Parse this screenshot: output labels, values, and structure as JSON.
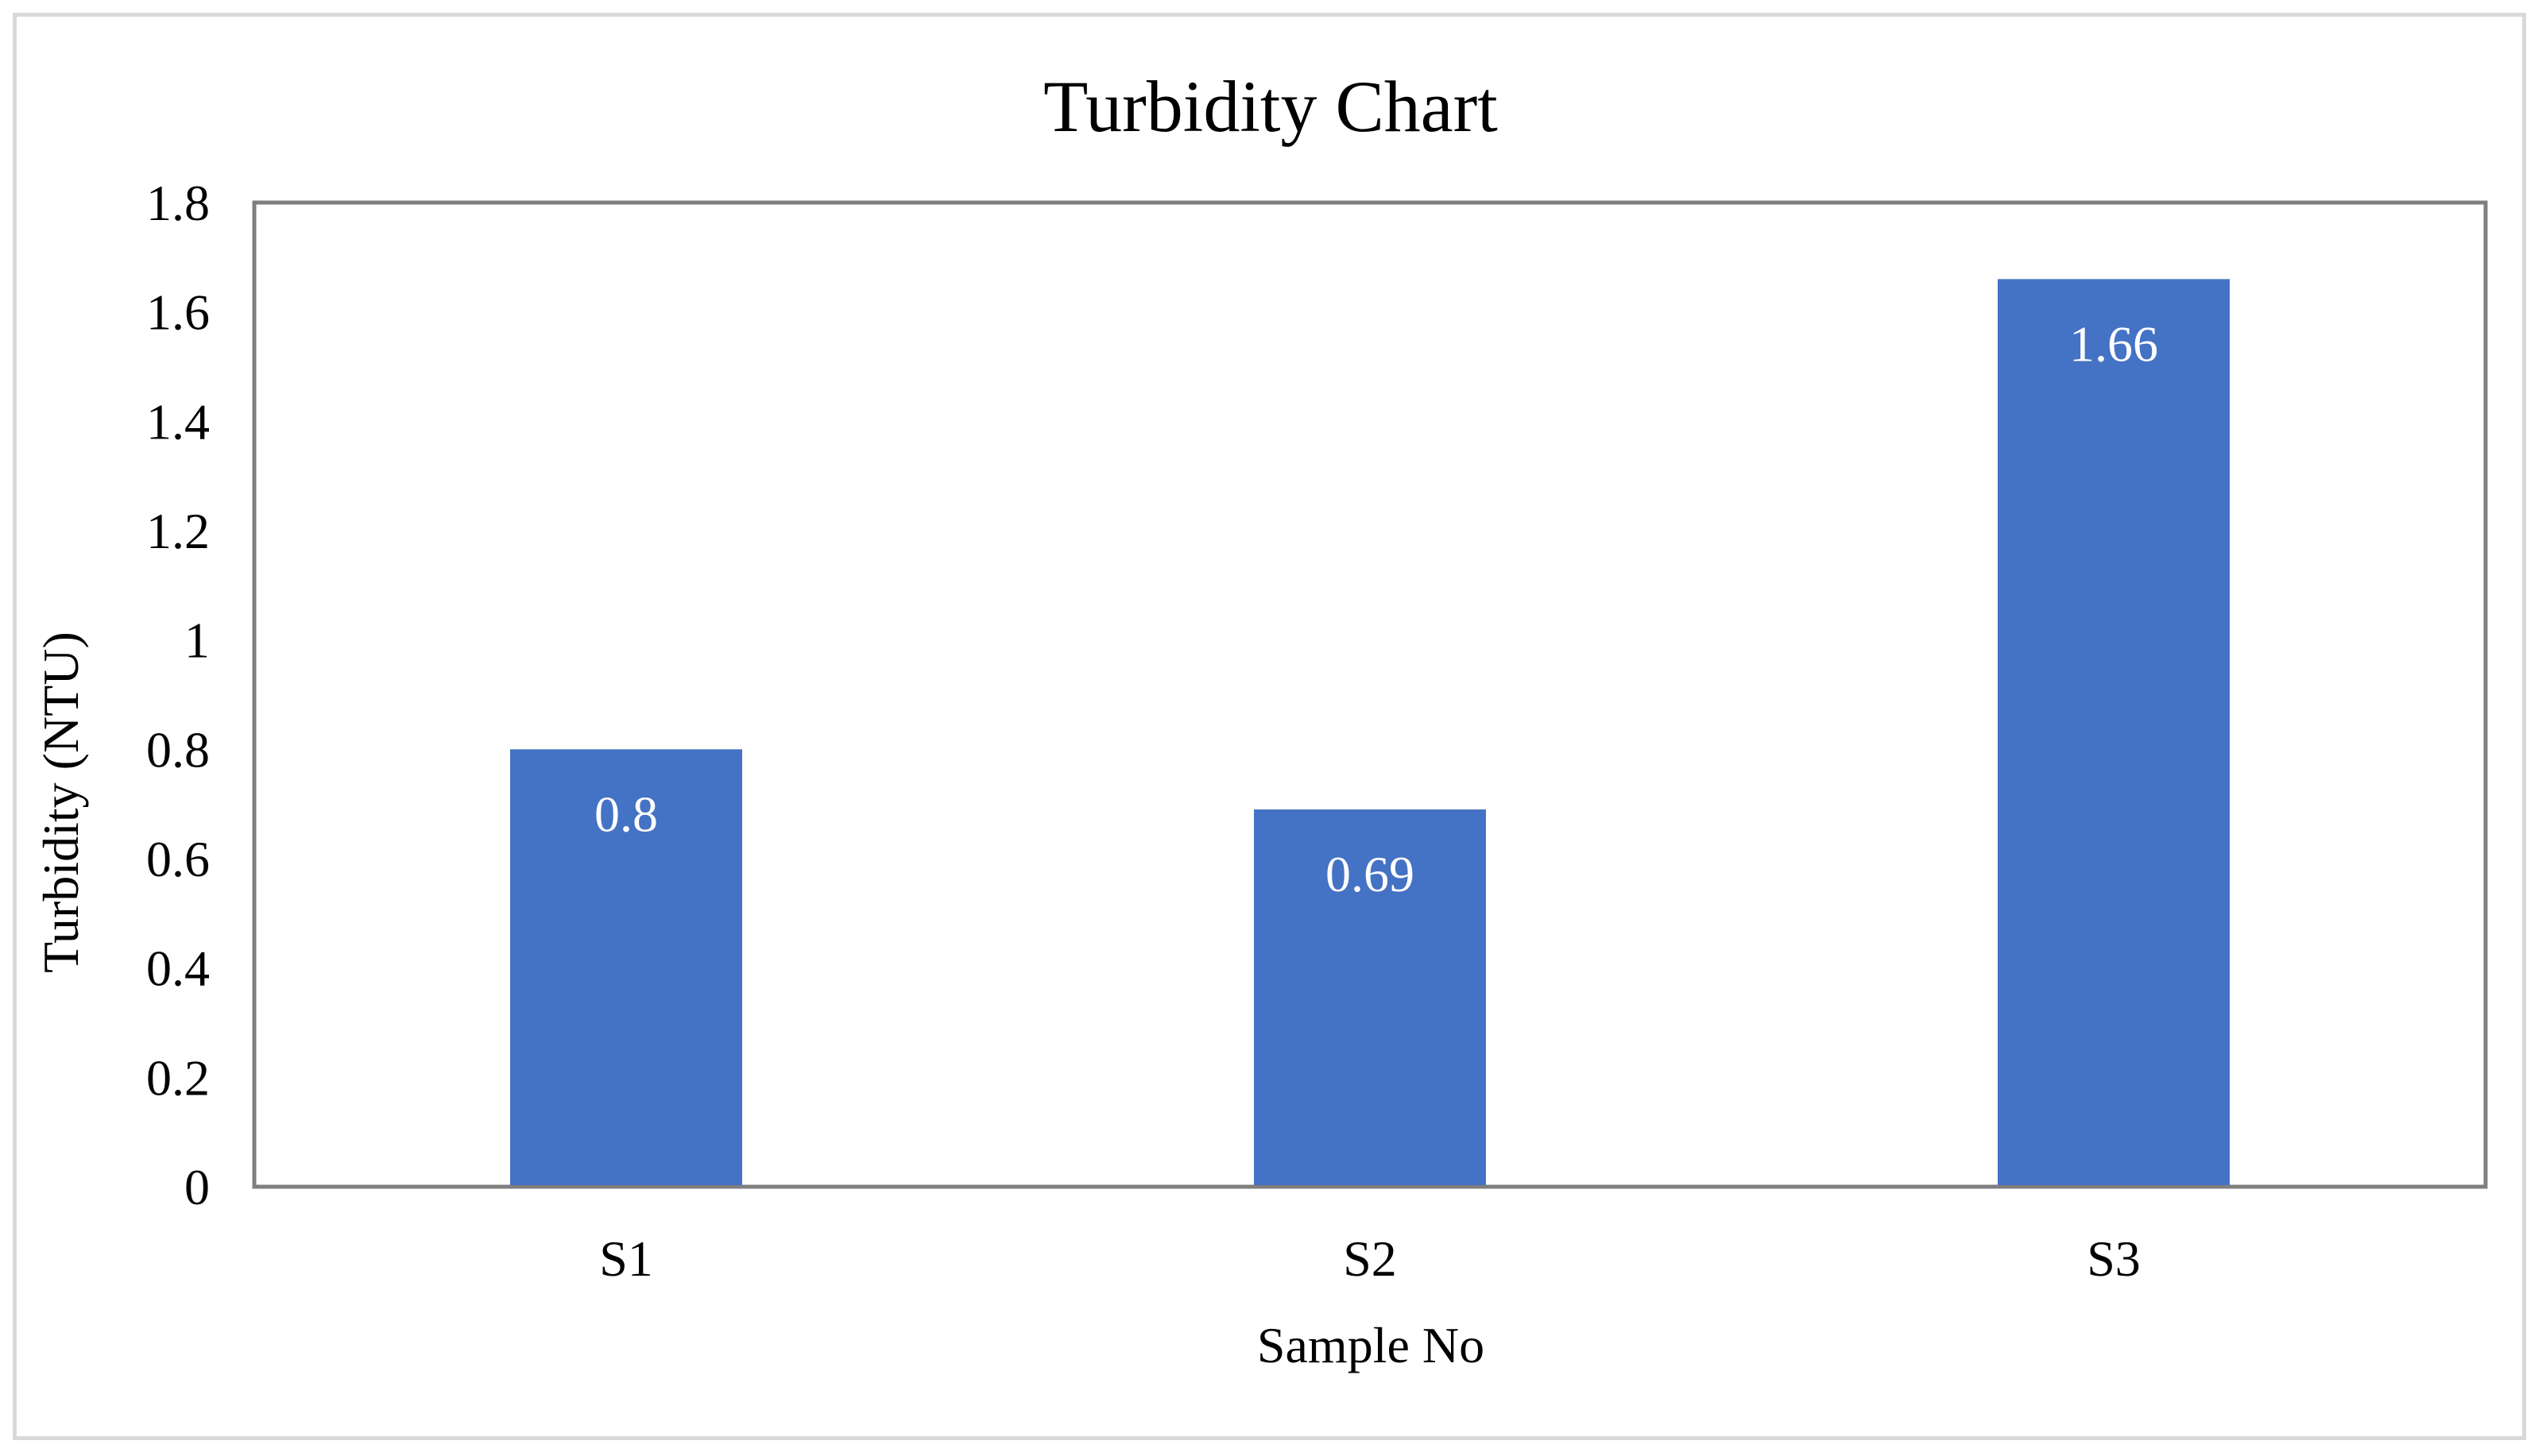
{
  "chart_data": {
    "type": "bar",
    "title": "Turbidity Chart",
    "xlabel": "Sample No",
    "ylabel": "Turbidity (NTU)",
    "categories": [
      "S1",
      "S2",
      "S3"
    ],
    "values": [
      0.8,
      0.69,
      1.66
    ],
    "data_labels": [
      "0.8",
      "0.69",
      "1.66"
    ],
    "ylim": [
      0,
      1.8
    ],
    "yticks": [
      "0",
      "0.2",
      "0.4",
      "0.6",
      "0.8",
      "1",
      "1.2",
      "1.4",
      "1.6",
      "1.8"
    ],
    "grid": false,
    "legend": "none",
    "bar_color": "#4472c4",
    "label_color": "#ffffff",
    "axis_color": "#7f7f7f"
  }
}
